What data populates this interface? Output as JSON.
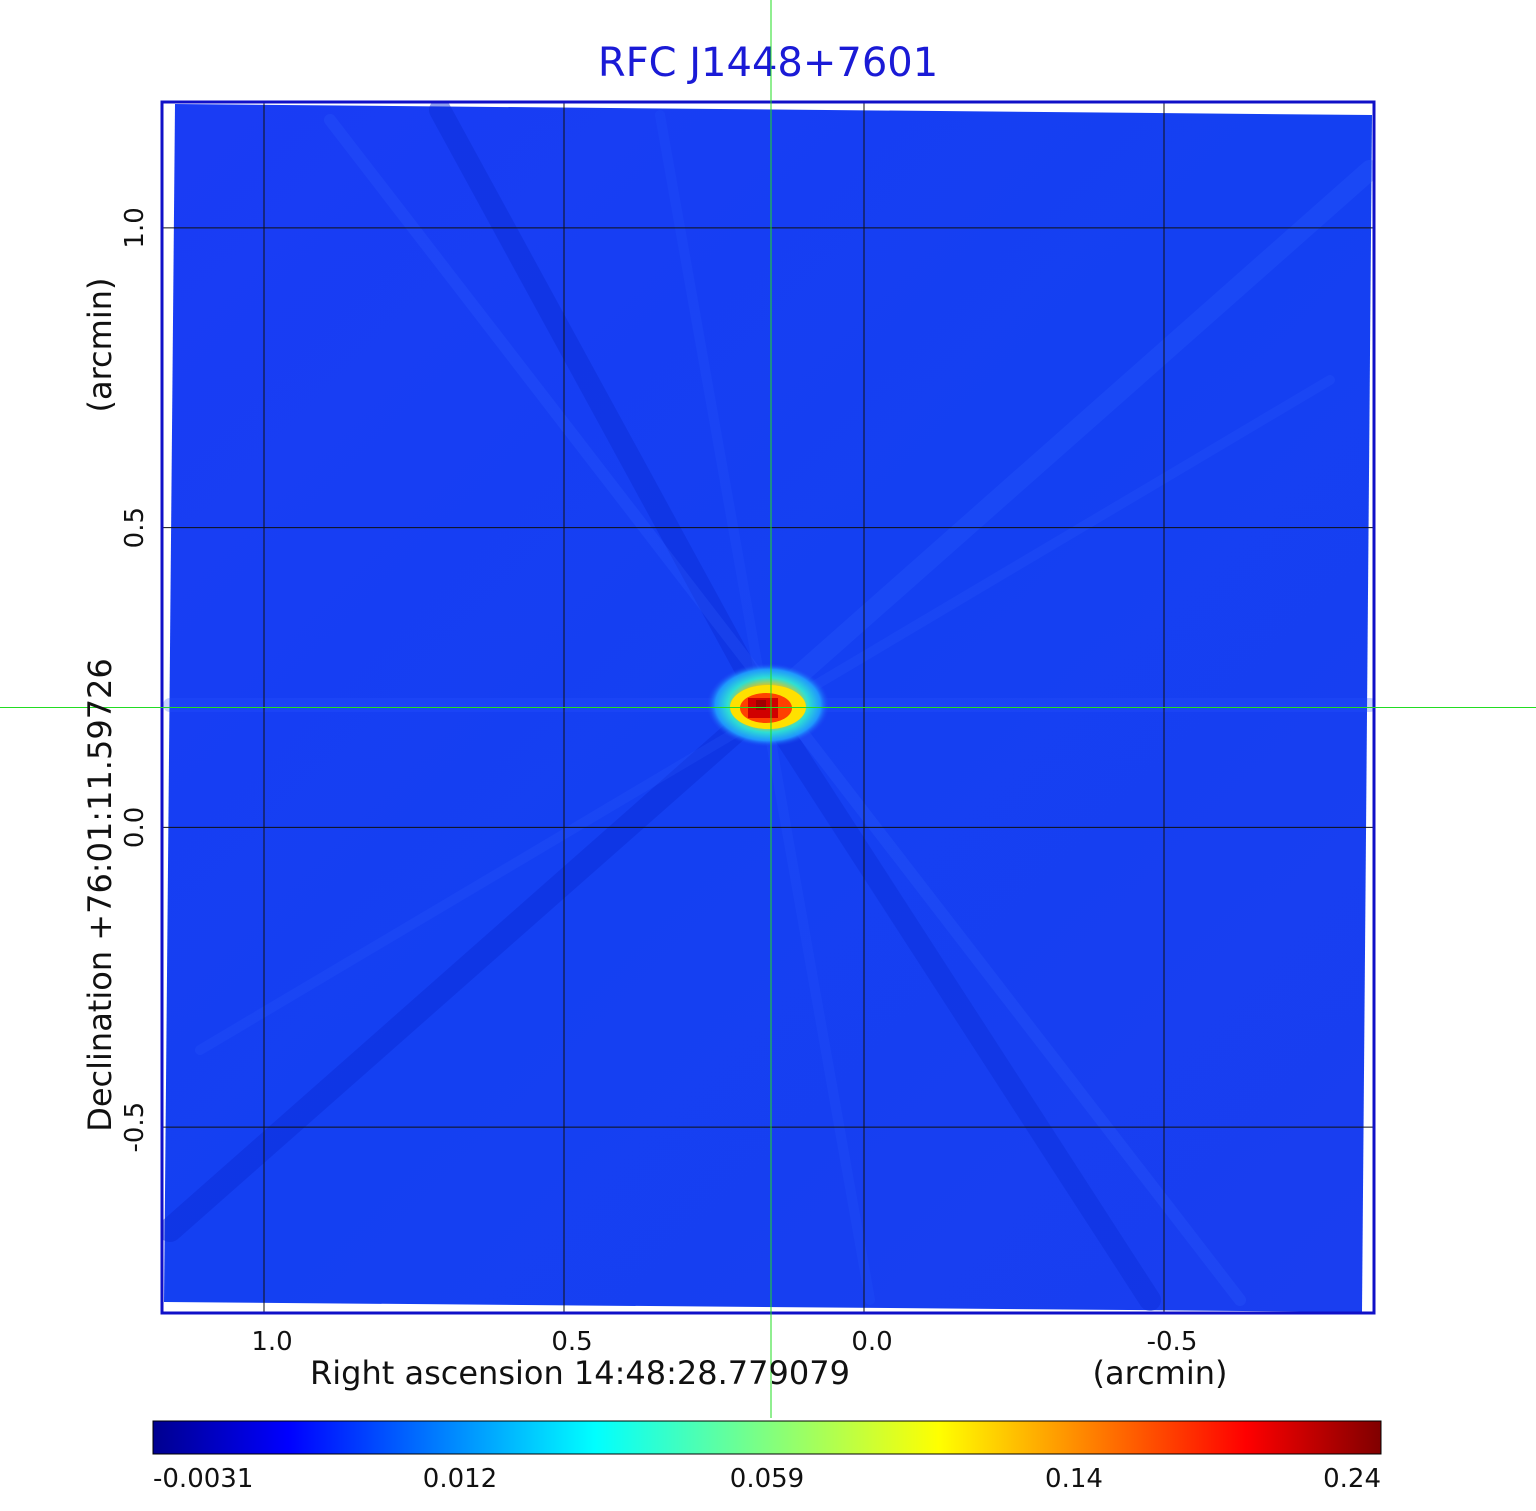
{
  "chart_data": {
    "type": "heatmap",
    "title": "RFC J1448+7601",
    "xlabel": "Right ascension  14:48:28.779079",
    "xlabel_unit": "(arcmin)",
    "ylabel": "Declination  +76:01:11.59726",
    "ylabel_unit": "(arcmin)",
    "xlim": [
      1.17,
      -0.85
    ],
    "ylim": [
      -0.81,
      1.21
    ],
    "x_ticks": [
      1.0,
      0.5,
      0.0,
      -0.5
    ],
    "x_tick_labels": [
      "1.0",
      "0.5",
      "0.0",
      "-0.5"
    ],
    "y_ticks": [
      1.0,
      0.5,
      0.0,
      -0.5
    ],
    "y_tick_labels": [
      "1.0",
      "0.5",
      "0.0",
      "-0.5"
    ],
    "grid": true,
    "crosshair": {
      "x": 0.155,
      "y": 0.2,
      "color": "#22dd22"
    },
    "source_peak": {
      "x": 0.16,
      "y": 0.2,
      "value": 0.24
    },
    "colormap": "jet",
    "colorbar": {
      "tick_labels": [
        "-0.0031",
        "0.012",
        "0.059",
        "0.14",
        "0.24"
      ],
      "placement": "bottom"
    }
  }
}
